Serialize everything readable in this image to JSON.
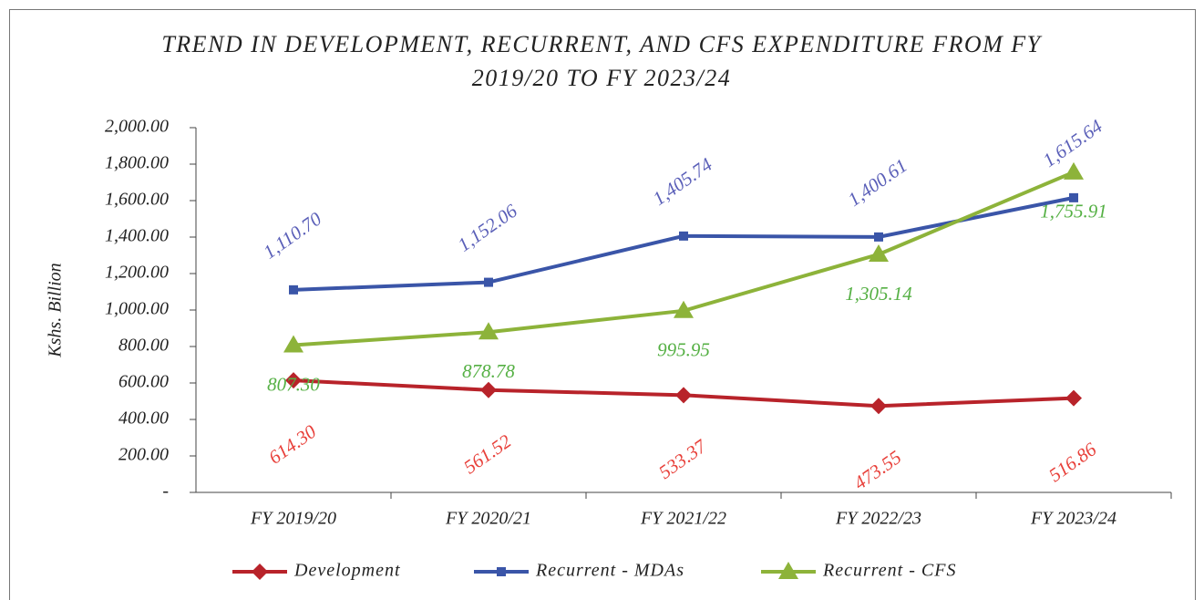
{
  "chart_data": {
    "type": "line",
    "title": "TREND IN DEVELOPMENT, RECURRENT, AND CFS EXPENDITURE FROM FY 2019/20 TO FY 2023/24",
    "y_label": "Kshs. Billion",
    "categories": [
      "FY 2019/20",
      "FY 2020/21",
      "FY 2021/22",
      "FY 2022/23",
      "FY 2023/24"
    ],
    "series": [
      {
        "name": "Development",
        "color": "#b8232a",
        "label_color": "#e8403a",
        "marker": "diamond",
        "values": [
          614.3,
          561.52,
          533.37,
          473.55,
          516.86
        ],
        "value_labels": [
          "614.30",
          "561.52",
          "533.37",
          "473.55",
          "516.86"
        ]
      },
      {
        "name": "Recurrent - MDAs",
        "color": "#3a55a8",
        "label_color": "#5a5fb8",
        "marker": "square",
        "values": [
          1110.7,
          1152.06,
          1405.74,
          1400.61,
          1615.64
        ],
        "value_labels": [
          "1,110.70",
          "1,152.06",
          "1,405.74",
          "1,400.61",
          "1,615.64"
        ]
      },
      {
        "name": "Recurrent - CFS",
        "color": "#8db33a",
        "label_color": "#55b044",
        "marker": "triangle",
        "values": [
          807.3,
          878.78,
          995.95,
          1305.14,
          1755.91
        ],
        "value_labels": [
          "807.30",
          "878.78",
          "995.95",
          "1,305.14",
          "1,755.91"
        ]
      }
    ],
    "ylim": [
      0,
      2000
    ],
    "yticks": [
      {
        "value": 0,
        "label": "-"
      },
      {
        "value": 200,
        "label": "200.00"
      },
      {
        "value": 400,
        "label": "400.00"
      },
      {
        "value": 600,
        "label": "600.00"
      },
      {
        "value": 800,
        "label": "800.00"
      },
      {
        "value": 1000,
        "label": "1,000.00"
      },
      {
        "value": 1200,
        "label": "1,200.00"
      },
      {
        "value": 1400,
        "label": "1,400.00"
      },
      {
        "value": 1600,
        "label": "1,600.00"
      },
      {
        "value": 1800,
        "label": "1,800.00"
      },
      {
        "value": 2000,
        "label": "2,000.00"
      }
    ],
    "legend": "bottom"
  }
}
